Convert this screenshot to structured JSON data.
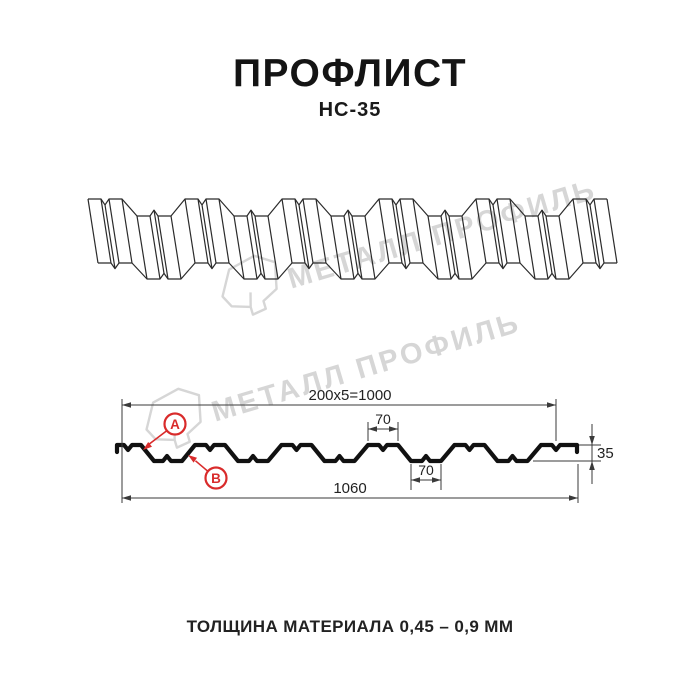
{
  "header": {
    "title": "ПРОФЛИСТ",
    "subtitle": "НС-35"
  },
  "watermark": {
    "brand": "МЕТАЛЛ ПРОФИЛЬ"
  },
  "section": {
    "dim_pitch": "200x5=1000",
    "dim_rib_top": "70",
    "dim_rib_bottom": "70",
    "dim_height": "35",
    "dim_overall": "1060",
    "marker_a": "A",
    "marker_b": "B"
  },
  "footer": {
    "thickness": "ТОЛЩИНА МАТЕРИАЛА 0,45 – 0,9 ММ"
  },
  "colors": {
    "accent_red": "#d92b2b",
    "line_dark": "#2b2b2b",
    "profile_black": "#111111",
    "watermark_gray": "#d6d6d6"
  }
}
